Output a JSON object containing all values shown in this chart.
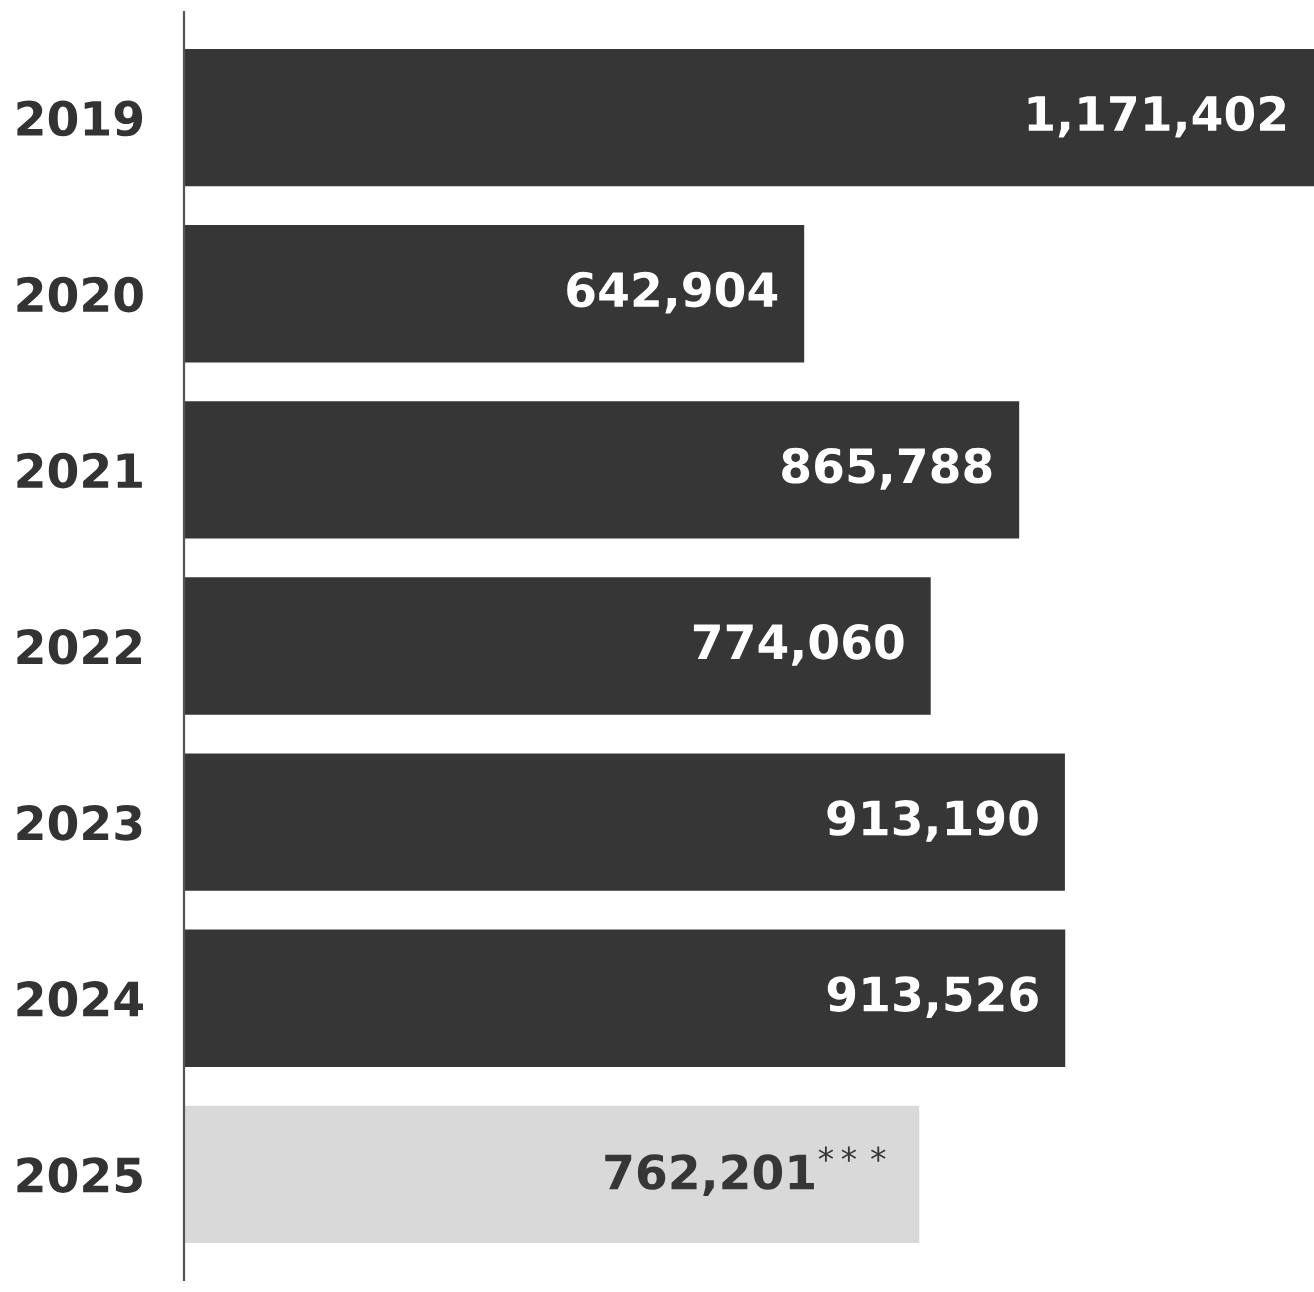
{
  "chart_data": {
    "type": "bar",
    "orientation": "horizontal",
    "categories": [
      "2019",
      "2020",
      "2021",
      "2022",
      "2023",
      "2024",
      "2025"
    ],
    "values": [
      1171402,
      642904,
      865788,
      774060,
      913190,
      913526,
      762201
    ],
    "colors": [
      "#363636",
      "#363636",
      "#363636",
      "#363636",
      "#363636",
      "#363636",
      "#d9d9d9"
    ],
    "value_labels": [
      "1,171,402",
      "642,904",
      "865,788",
      "774,060",
      "913,190",
      "913,526",
      "762,201$^{***}$"
    ],
    "grid": false,
    "legend": false
  }
}
